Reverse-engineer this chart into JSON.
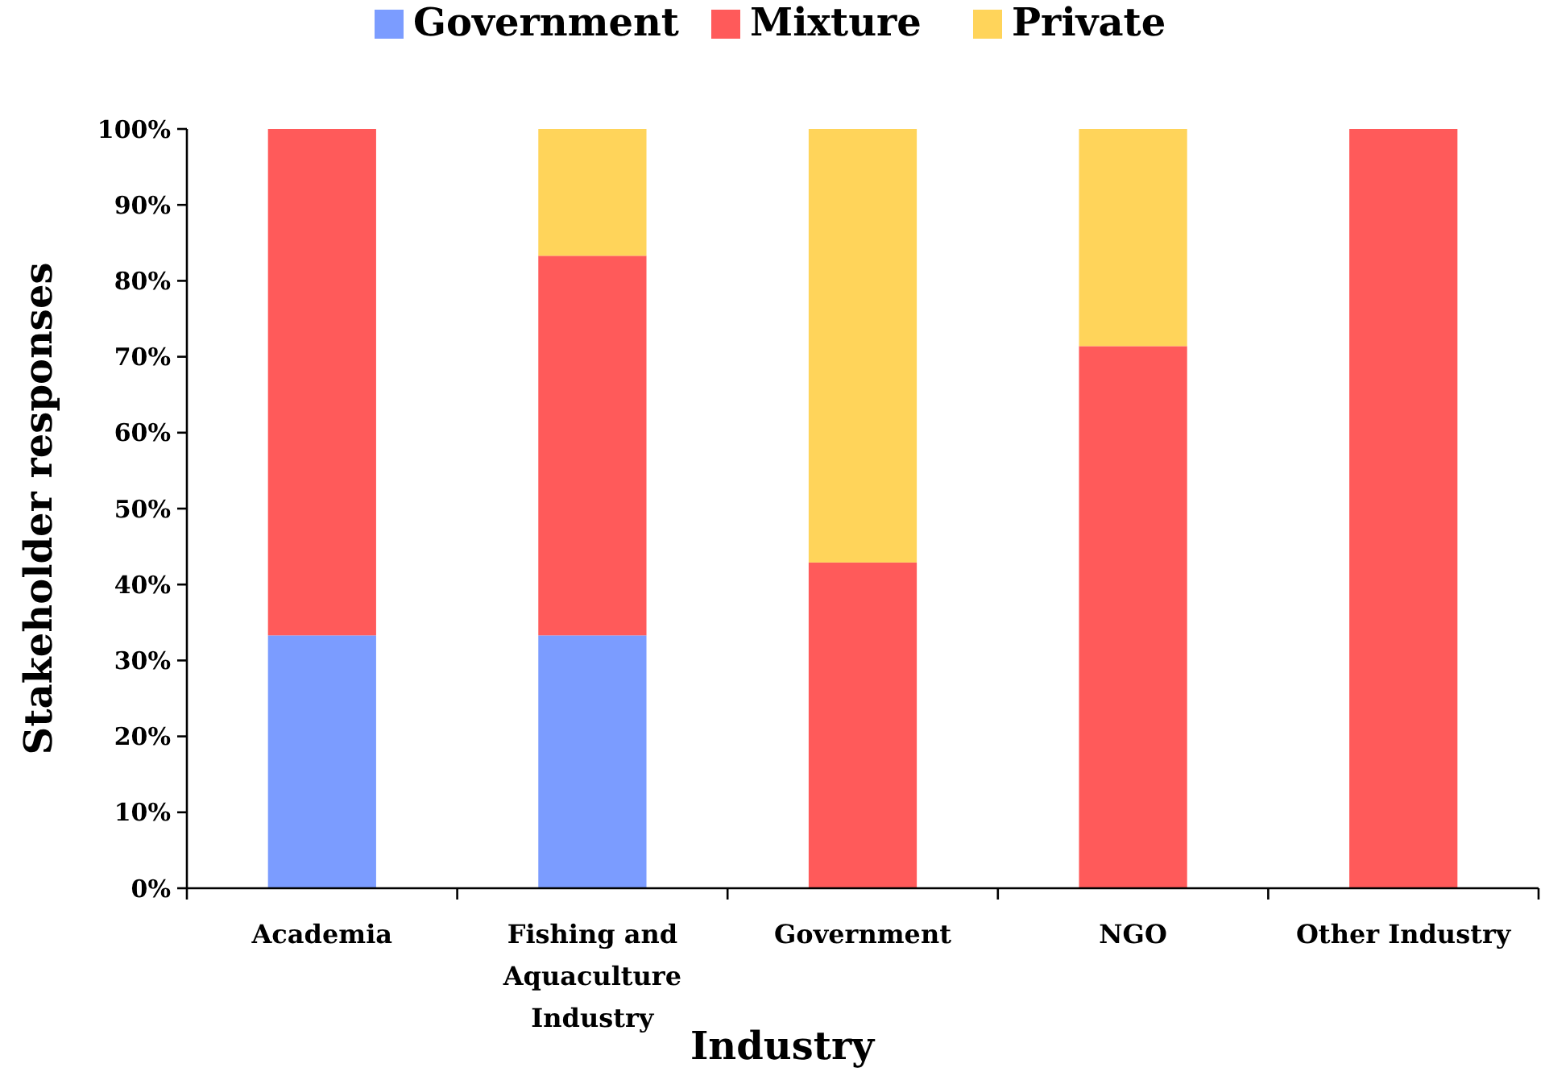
{
  "chart_data": {
    "type": "bar",
    "stacked": true,
    "xlabel": "Industry",
    "ylabel": "Stakeholder responses",
    "categories": [
      "Academia",
      "Fishing and Aquaculture Industry",
      "Government",
      "NGO",
      "Other Industry"
    ],
    "series": [
      {
        "name": "Government",
        "color": "#7b9cff",
        "values": [
          33.3,
          33.3,
          0,
          0,
          0
        ]
      },
      {
        "name": "Mixture",
        "color": "#ff5a5a",
        "values": [
          66.7,
          50,
          42.9,
          71.4,
          100
        ]
      },
      {
        "name": "Private",
        "color": "#ffd45a",
        "values": [
          0,
          16.7,
          57.1,
          28.6,
          0
        ]
      }
    ],
    "ylim": [
      0,
      100
    ],
    "yticks": [
      {
        "value": 0,
        "label": "0%"
      },
      {
        "value": 10,
        "label": "10%"
      },
      {
        "value": 20,
        "label": "20%"
      },
      {
        "value": 30,
        "label": "30%"
      },
      {
        "value": 40,
        "label": "40%"
      },
      {
        "value": 50,
        "label": "50%"
      },
      {
        "value": 60,
        "label": "60%"
      },
      {
        "value": 70,
        "label": "70%"
      },
      {
        "value": 80,
        "label": "80%"
      },
      {
        "value": 90,
        "label": "90%"
      },
      {
        "value": 100,
        "label": "100%"
      }
    ],
    "grid": false,
    "legend": "top"
  }
}
